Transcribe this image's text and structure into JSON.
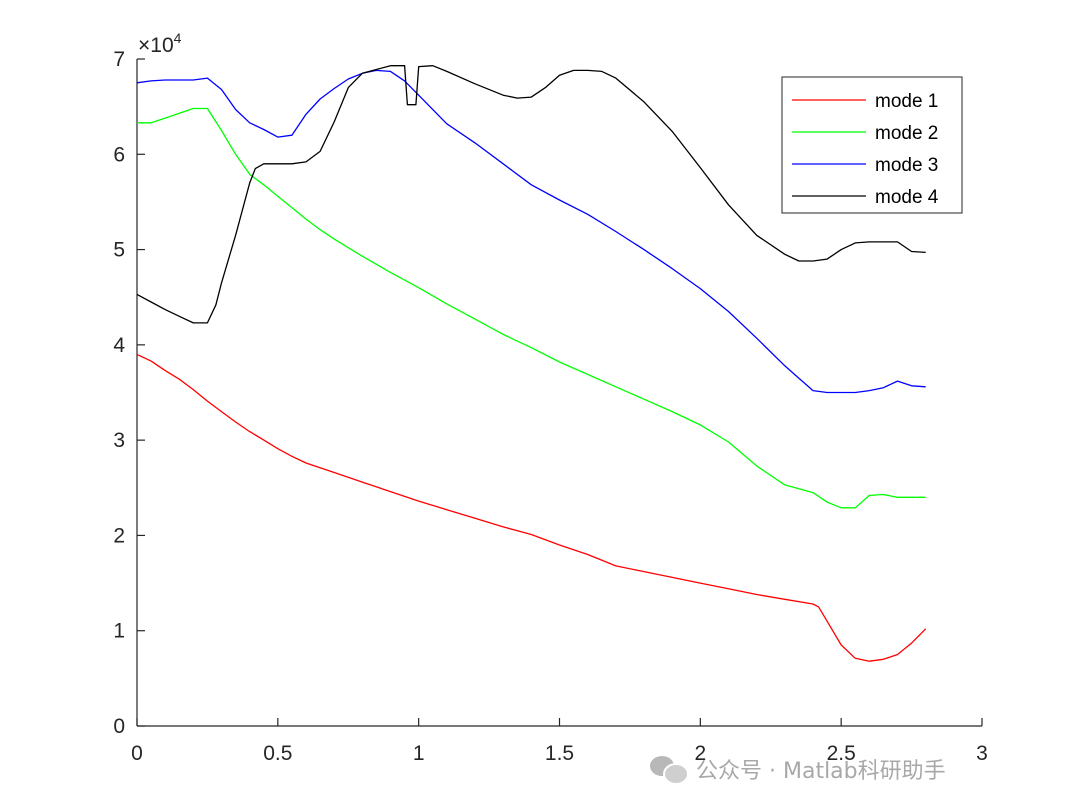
{
  "chart_data": {
    "type": "line",
    "title": "",
    "xlabel": "",
    "ylabel": "",
    "xlim": [
      0,
      3
    ],
    "ylim": [
      0,
      70000
    ],
    "x_ticks": [
      "0",
      "0.5",
      "1",
      "1.5",
      "2",
      "2.5",
      "3"
    ],
    "y_ticks": [
      "0",
      "1",
      "2",
      "3",
      "4",
      "5",
      "6",
      "7"
    ],
    "y_multiplier": "×10",
    "y_multiplier_exp": "4",
    "grid": false,
    "legend_position": "top-right",
    "series": [
      {
        "name": "mode 1",
        "color": "#ff0000",
        "x": [
          0,
          0.05,
          0.1,
          0.15,
          0.2,
          0.25,
          0.3,
          0.35,
          0.4,
          0.45,
          0.5,
          0.55,
          0.6,
          0.65,
          0.7,
          0.8,
          0.9,
          1.0,
          1.1,
          1.2,
          1.3,
          1.4,
          1.5,
          1.6,
          1.7,
          1.8,
          1.9,
          2.0,
          2.1,
          2.2,
          2.3,
          2.4,
          2.42,
          2.45,
          2.5,
          2.55,
          2.6,
          2.65,
          2.7,
          2.75,
          2.8
        ],
        "y": [
          39000,
          38300,
          37300,
          36400,
          35300,
          34100,
          33000,
          31900,
          30900,
          30000,
          29100,
          28300,
          27600,
          27100,
          26600,
          25600,
          24600,
          23600,
          22700,
          21800,
          20900,
          20100,
          19000,
          18000,
          16800,
          16200,
          15600,
          15000,
          14400,
          13800,
          13300,
          12800,
          12500,
          11000,
          8500,
          7100,
          6800,
          7000,
          7500,
          8700,
          10200
        ]
      },
      {
        "name": "mode 2",
        "color": "#00ff00",
        "x": [
          0,
          0.05,
          0.1,
          0.15,
          0.2,
          0.25,
          0.3,
          0.35,
          0.4,
          0.45,
          0.5,
          0.55,
          0.6,
          0.65,
          0.7,
          0.8,
          0.9,
          1.0,
          1.1,
          1.2,
          1.3,
          1.4,
          1.5,
          1.6,
          1.7,
          1.8,
          1.9,
          2.0,
          2.1,
          2.2,
          2.3,
          2.4,
          2.45,
          2.5,
          2.55,
          2.6,
          2.65,
          2.7,
          2.75,
          2.8
        ],
        "y": [
          63300,
          63300,
          63800,
          64300,
          64800,
          64800,
          62500,
          60000,
          57900,
          56800,
          55600,
          54400,
          53200,
          52100,
          51100,
          49300,
          47600,
          46000,
          44300,
          42700,
          41100,
          39700,
          38200,
          36900,
          35600,
          34300,
          33000,
          31600,
          29800,
          27300,
          25300,
          24500,
          23500,
          22900,
          22900,
          24200,
          24300,
          24000,
          24000,
          24000
        ]
      },
      {
        "name": "mode 3",
        "color": "#0000ff",
        "x": [
          0,
          0.05,
          0.1,
          0.15,
          0.2,
          0.25,
          0.3,
          0.35,
          0.4,
          0.45,
          0.5,
          0.55,
          0.6,
          0.65,
          0.7,
          0.75,
          0.8,
          0.85,
          0.9,
          0.95,
          1.0,
          1.1,
          1.2,
          1.3,
          1.4,
          1.5,
          1.6,
          1.7,
          1.8,
          1.9,
          2.0,
          2.1,
          2.2,
          2.3,
          2.35,
          2.4,
          2.45,
          2.5,
          2.55,
          2.6,
          2.65,
          2.7,
          2.75,
          2.8
        ],
        "y": [
          67500,
          67700,
          67800,
          67800,
          67800,
          68000,
          66800,
          64700,
          63300,
          62600,
          61800,
          62000,
          64200,
          65800,
          66900,
          67900,
          68500,
          68800,
          68700,
          67700,
          66200,
          63200,
          61200,
          59000,
          56800,
          55200,
          53700,
          51900,
          50000,
          48000,
          45900,
          43500,
          40700,
          37800,
          36500,
          35200,
          35000,
          35000,
          35000,
          35200,
          35500,
          36200,
          35700,
          35600
        ]
      },
      {
        "name": "mode 4",
        "color": "#000000",
        "x": [
          0,
          0.05,
          0.1,
          0.15,
          0.2,
          0.25,
          0.28,
          0.3,
          0.35,
          0.4,
          0.42,
          0.45,
          0.5,
          0.55,
          0.6,
          0.65,
          0.7,
          0.75,
          0.8,
          0.85,
          0.9,
          0.95,
          0.96,
          0.99,
          1.0,
          1.05,
          1.1,
          1.2,
          1.3,
          1.35,
          1.4,
          1.45,
          1.5,
          1.55,
          1.6,
          1.65,
          1.7,
          1.8,
          1.9,
          2.0,
          2.1,
          2.2,
          2.3,
          2.35,
          2.4,
          2.45,
          2.5,
          2.55,
          2.6,
          2.65,
          2.7,
          2.75,
          2.8
        ],
        "y": [
          45300,
          44500,
          43700,
          43000,
          42300,
          42300,
          44200,
          46500,
          51500,
          57000,
          58500,
          59000,
          59000,
          59000,
          59200,
          60300,
          63400,
          67000,
          68500,
          68900,
          69300,
          69300,
          65200,
          65200,
          69200,
          69300,
          68700,
          67400,
          66200,
          65900,
          66000,
          67000,
          68300,
          68800,
          68800,
          68700,
          68000,
          65500,
          62400,
          58600,
          54700,
          51500,
          49500,
          48800,
          48800,
          49000,
          50000,
          50700,
          50800,
          50800,
          50800,
          49800,
          49700
        ]
      }
    ]
  },
  "watermark": {
    "text": "公众号 · Matlab科研助手",
    "icon": "wechat-icon"
  }
}
